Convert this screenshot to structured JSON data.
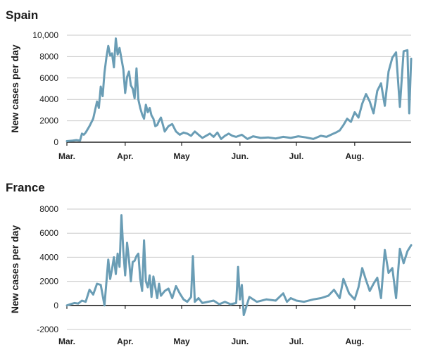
{
  "colors": {
    "series": "#6a9db5",
    "grid": "#c9c9c9",
    "axis": "#222222"
  },
  "chart_data": [
    {
      "type": "line",
      "title": "Spain",
      "ylabel": "New cases per day",
      "xlabel": "",
      "ylim": [
        0,
        10000
      ],
      "yticks": [
        0,
        2000,
        4000,
        6000,
        8000,
        10000
      ],
      "ytick_labels": [
        "0",
        "2000",
        "4000",
        "6000",
        "8000",
        "10,000"
      ],
      "xlim": [
        "2020-03-01",
        "2020-08-31"
      ],
      "xticks": [
        {
          "date": "2020-03-01",
          "label": "Mar."
        },
        {
          "date": "2020-04-01",
          "label": "Apr."
        },
        {
          "date": "2020-05-01",
          "label": "May"
        },
        {
          "date": "2020-06-01",
          "label": "Jun."
        },
        {
          "date": "2020-07-01",
          "label": "Jul."
        },
        {
          "date": "2020-08-01",
          "label": "Aug."
        }
      ],
      "grid": true,
      "series": [
        {
          "x": [
            "2020-03-01",
            "2020-03-04",
            "2020-03-06",
            "2020-03-08",
            "2020-03-09",
            "2020-03-10",
            "2020-03-11",
            "2020-03-13",
            "2020-03-15",
            "2020-03-17",
            "2020-03-18",
            "2020-03-19",
            "2020-03-20",
            "2020-03-21",
            "2020-03-22",
            "2020-03-23",
            "2020-03-24",
            "2020-03-25",
            "2020-03-26",
            "2020-03-27",
            "2020-03-28",
            "2020-03-29",
            "2020-03-30",
            "2020-03-31",
            "2020-04-01",
            "2020-04-02",
            "2020-04-03",
            "2020-04-04",
            "2020-04-05",
            "2020-04-06",
            "2020-04-07",
            "2020-04-08",
            "2020-04-09",
            "2020-04-10",
            "2020-04-11",
            "2020-04-12",
            "2020-04-13",
            "2020-04-14",
            "2020-04-15",
            "2020-04-16",
            "2020-04-17",
            "2020-04-18",
            "2020-04-19",
            "2020-04-20",
            "2020-04-22",
            "2020-04-24",
            "2020-04-26",
            "2020-04-28",
            "2020-04-30",
            "2020-05-02",
            "2020-05-04",
            "2020-05-06",
            "2020-05-08",
            "2020-05-10",
            "2020-05-12",
            "2020-05-14",
            "2020-05-16",
            "2020-05-18",
            "2020-05-20",
            "2020-05-22",
            "2020-05-24",
            "2020-05-26",
            "2020-05-28",
            "2020-05-30",
            "2020-06-02",
            "2020-06-05",
            "2020-06-08",
            "2020-06-12",
            "2020-06-16",
            "2020-06-20",
            "2020-06-24",
            "2020-06-28",
            "2020-07-02",
            "2020-07-06",
            "2020-07-10",
            "2020-07-14",
            "2020-07-17",
            "2020-07-20",
            "2020-07-22",
            "2020-07-24",
            "2020-07-26",
            "2020-07-28",
            "2020-07-30",
            "2020-08-01",
            "2020-08-03",
            "2020-08-05",
            "2020-08-07",
            "2020-08-09",
            "2020-08-11",
            "2020-08-13",
            "2020-08-15",
            "2020-08-17",
            "2020-08-19",
            "2020-08-21",
            "2020-08-23",
            "2020-08-25",
            "2020-08-27",
            "2020-08-29",
            "2020-08-30",
            "2020-08-31"
          ],
          "y": [
            100,
            150,
            200,
            150,
            800,
            700,
            900,
            1500,
            2200,
            3800,
            3200,
            5200,
            4300,
            6500,
            7900,
            9000,
            8100,
            8300,
            7000,
            9700,
            8200,
            8800,
            7800,
            6800,
            4600,
            6100,
            6600,
            5300,
            5000,
            4100,
            6900,
            4000,
            3200,
            2600,
            2200,
            3500,
            2800,
            3200,
            2500,
            2200,
            1500,
            1600,
            2000,
            2300,
            1000,
            1500,
            1700,
            1000,
            700,
            900,
            800,
            600,
            1000,
            700,
            400,
            600,
            800,
            500,
            900,
            300,
            600,
            800,
            600,
            500,
            700,
            300,
            550,
            400,
            450,
            350,
            500,
            400,
            550,
            450,
            300,
            600,
            500,
            750,
            900,
            1100,
            1600,
            2200,
            1900,
            2800,
            2300,
            3600,
            4500,
            3800,
            2700,
            4800,
            5500,
            3400,
            6600,
            7900,
            8400,
            3300,
            8500,
            8600,
            2700,
            7800
          ]
        }
      ]
    },
    {
      "type": "line",
      "title": "France",
      "ylabel": "New cases per day",
      "xlabel": "",
      "ylim": [
        -2000,
        8000
      ],
      "yticks": [
        -2000,
        0,
        2000,
        4000,
        6000,
        8000
      ],
      "ytick_labels": [
        "-2000",
        "0",
        "2000",
        "4000",
        "6000",
        "8000"
      ],
      "xlim": [
        "2020-03-01",
        "2020-08-31"
      ],
      "xticks": [
        {
          "date": "2020-03-01",
          "label": "Mar."
        },
        {
          "date": "2020-04-01",
          "label": "Apr."
        },
        {
          "date": "2020-05-01",
          "label": "May"
        },
        {
          "date": "2020-06-01",
          "label": "Jun."
        },
        {
          "date": "2020-07-01",
          "label": "Jul."
        },
        {
          "date": "2020-08-01",
          "label": "Aug."
        }
      ],
      "grid": true,
      "series": [
        {
          "x": [
            "2020-03-01",
            "2020-03-03",
            "2020-03-05",
            "2020-03-07",
            "2020-03-09",
            "2020-03-11",
            "2020-03-13",
            "2020-03-15",
            "2020-03-17",
            "2020-03-19",
            "2020-03-21",
            "2020-03-23",
            "2020-03-24",
            "2020-03-25",
            "2020-03-26",
            "2020-03-27",
            "2020-03-28",
            "2020-03-29",
            "2020-03-30",
            "2020-03-31",
            "2020-04-01",
            "2020-04-02",
            "2020-04-03",
            "2020-04-04",
            "2020-04-05",
            "2020-04-06",
            "2020-04-07",
            "2020-04-08",
            "2020-04-09",
            "2020-04-10",
            "2020-04-11",
            "2020-04-12",
            "2020-04-13",
            "2020-04-14",
            "2020-04-15",
            "2020-04-16",
            "2020-04-17",
            "2020-04-18",
            "2020-04-19",
            "2020-04-20",
            "2020-04-21",
            "2020-04-22",
            "2020-04-24",
            "2020-04-26",
            "2020-04-28",
            "2020-04-30",
            "2020-05-02",
            "2020-05-04",
            "2020-05-06",
            "2020-05-07",
            "2020-05-08",
            "2020-05-10",
            "2020-05-12",
            "2020-05-15",
            "2020-05-18",
            "2020-05-21",
            "2020-05-24",
            "2020-05-27",
            "2020-05-30",
            "2020-05-31",
            "2020-06-01",
            "2020-06-02",
            "2020-06-03",
            "2020-06-06",
            "2020-06-10",
            "2020-06-15",
            "2020-06-20",
            "2020-06-24",
            "2020-06-26",
            "2020-06-28",
            "2020-07-01",
            "2020-07-05",
            "2020-07-10",
            "2020-07-14",
            "2020-07-18",
            "2020-07-21",
            "2020-07-24",
            "2020-07-26",
            "2020-07-29",
            "2020-08-01",
            "2020-08-03",
            "2020-08-05",
            "2020-08-07",
            "2020-08-09",
            "2020-08-11",
            "2020-08-13",
            "2020-08-15",
            "2020-08-17",
            "2020-08-19",
            "2020-08-21",
            "2020-08-23",
            "2020-08-25",
            "2020-08-27",
            "2020-08-29",
            "2020-08-31"
          ],
          "y": [
            0,
            100,
            200,
            150,
            400,
            300,
            1300,
            900,
            1800,
            1700,
            0,
            3800,
            2200,
            3000,
            4000,
            2600,
            4300,
            3200,
            7500,
            4500,
            2500,
            5200,
            3800,
            2000,
            3600,
            3700,
            4100,
            4300,
            2200,
            1200,
            5400,
            2000,
            1500,
            2500,
            700,
            2400,
            1500,
            600,
            1800,
            800,
            1000,
            1200,
            1400,
            600,
            1600,
            1000,
            500,
            300,
            700,
            4100,
            300,
            600,
            200,
            300,
            400,
            100,
            300,
            100,
            200,
            3200,
            500,
            1700,
            -800,
            700,
            300,
            500,
            400,
            1000,
            300,
            600,
            400,
            300,
            500,
            600,
            800,
            1300,
            600,
            2200,
            1000,
            500,
            1500,
            3100,
            2100,
            1200,
            1800,
            2300,
            600,
            4600,
            2700,
            3100,
            600,
            4700,
            3500,
            4500,
            5000
          ]
        }
      ]
    }
  ]
}
